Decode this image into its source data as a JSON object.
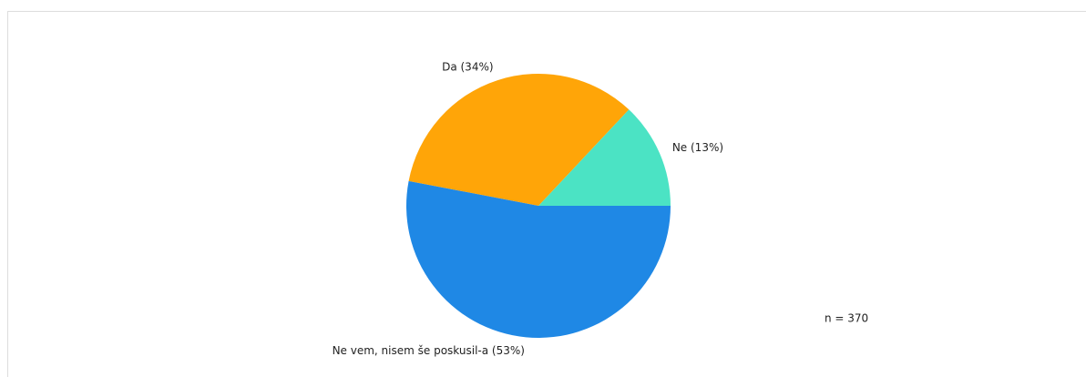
{
  "chart_data": {
    "type": "pie",
    "values": [
      13,
      34,
      53
    ],
    "value_labels": [
      "Ne (13%)",
      "Da (34%)",
      "Ne vem, nisem še poskusil-a (53%)"
    ],
    "colors": [
      "#4be3c4",
      "#ffa508",
      "#1f88e5"
    ],
    "annotation": "n = 370"
  }
}
